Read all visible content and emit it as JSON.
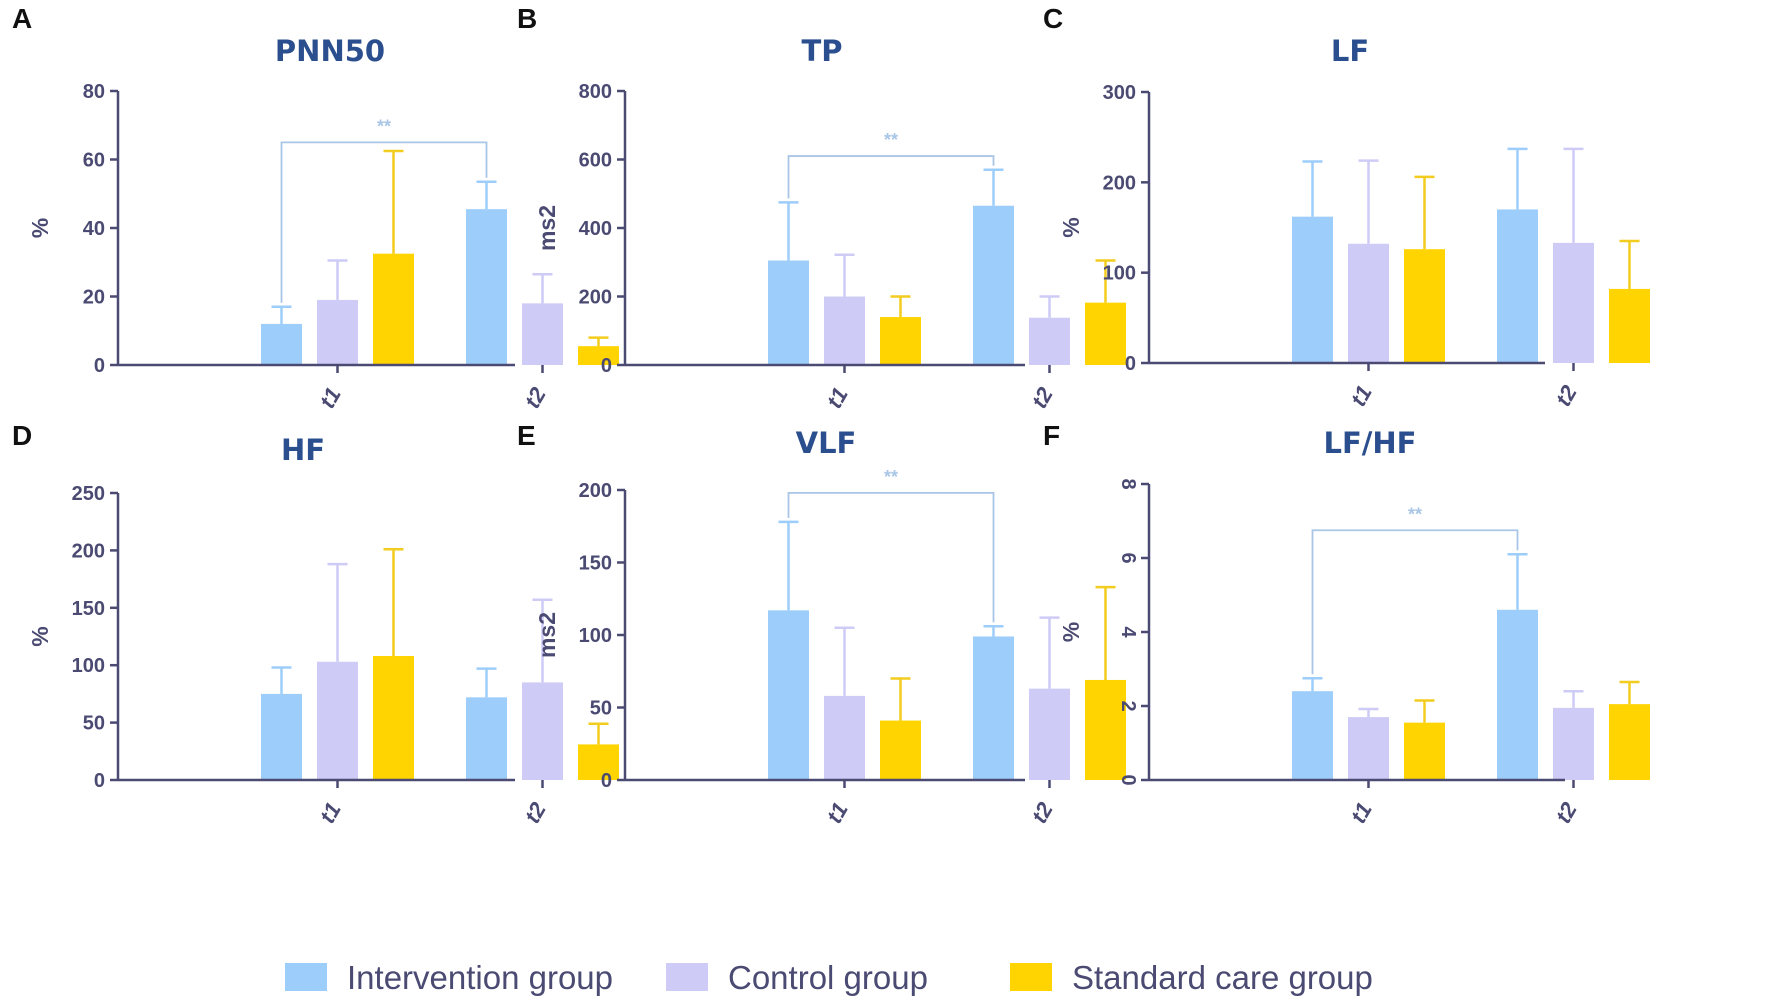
{
  "chart_data": [
    {
      "panel": "A",
      "title": "PNN50",
      "type": "bar",
      "ylabel": "%",
      "ylim": [
        0,
        80
      ],
      "yticks": [
        0,
        20,
        40,
        60,
        80
      ],
      "categories": [
        "t1",
        "t2"
      ],
      "series": [
        {
          "name": "Intervention group",
          "values": [
            12,
            45.5
          ],
          "errors": [
            5,
            8
          ]
        },
        {
          "name": "Control group",
          "values": [
            19,
            18
          ],
          "errors": [
            11.5,
            8.5
          ]
        },
        {
          "name": "Standard care group",
          "values": [
            32.5,
            5.5
          ],
          "errors": [
            30,
            2.5
          ]
        }
      ],
      "significance": {
        "label": "**",
        "top": 65
      }
    },
    {
      "panel": "B",
      "title": "TP",
      "type": "bar",
      "ylabel": "ms2",
      "ylim": [
        0,
        800
      ],
      "yticks": [
        0,
        200,
        400,
        600,
        800
      ],
      "categories": [
        "t1",
        "t2"
      ],
      "series": [
        {
          "name": "Intervention group",
          "values": [
            305,
            465
          ],
          "errors": [
            170,
            105
          ]
        },
        {
          "name": "Control group",
          "values": [
            200,
            138
          ],
          "errors": [
            122,
            62
          ]
        },
        {
          "name": "Standard care group",
          "values": [
            140,
            182
          ],
          "errors": [
            60,
            123
          ]
        }
      ],
      "significance": {
        "label": "**",
        "top": 610
      }
    },
    {
      "panel": "C",
      "title": "LF",
      "type": "bar",
      "ylabel": "%",
      "ylim": [
        0,
        300
      ],
      "yticks": [
        0,
        100,
        200,
        300
      ],
      "categories": [
        "t1",
        "t2"
      ],
      "series": [
        {
          "name": "Intervention group",
          "values": [
            162,
            170
          ],
          "errors": [
            61,
            67
          ]
        },
        {
          "name": "Control group",
          "values": [
            132,
            133
          ],
          "errors": [
            92,
            104
          ]
        },
        {
          "name": "Standard care group",
          "values": [
            126,
            82
          ],
          "errors": [
            80,
            53
          ]
        }
      ]
    },
    {
      "panel": "D",
      "title": "HF",
      "type": "bar",
      "ylabel": "%",
      "ylim": [
        0,
        250
      ],
      "yticks": [
        0,
        50,
        100,
        150,
        200,
        250
      ],
      "categories": [
        "t1",
        "t2"
      ],
      "series": [
        {
          "name": "Intervention group",
          "values": [
            75,
            72
          ],
          "errors": [
            23,
            25
          ]
        },
        {
          "name": "Control group",
          "values": [
            103,
            85
          ],
          "errors": [
            85,
            72
          ]
        },
        {
          "name": "Standard care group",
          "values": [
            108,
            31
          ],
          "errors": [
            93,
            18
          ]
        }
      ]
    },
    {
      "panel": "E",
      "title": "VLF",
      "type": "bar",
      "ylabel": "ms2",
      "ylim": [
        0,
        200
      ],
      "yticks": [
        0,
        50,
        100,
        150,
        200
      ],
      "categories": [
        "t1",
        "t2"
      ],
      "series": [
        {
          "name": "Intervention group",
          "values": [
            117,
            99
          ],
          "errors": [
            61,
            7
          ]
        },
        {
          "name": "Control group",
          "values": [
            58,
            63
          ],
          "errors": [
            47,
            49
          ]
        },
        {
          "name": "Standard care group",
          "values": [
            41,
            69
          ],
          "errors": [
            29,
            64
          ]
        }
      ],
      "significance": {
        "label": "**",
        "top": 198
      }
    },
    {
      "panel": "F",
      "title": "LF/HF",
      "type": "bar",
      "ylabel": "%",
      "ylim": [
        0,
        8
      ],
      "yticks": [
        0,
        2,
        4,
        6,
        8
      ],
      "ytick_rotation": 90,
      "categories": [
        "t1",
        "t2"
      ],
      "series": [
        {
          "name": "Intervention group",
          "values": [
            2.4,
            4.6
          ],
          "errors": [
            0.35,
            1.5
          ]
        },
        {
          "name": "Control group",
          "values": [
            1.7,
            1.95
          ],
          "errors": [
            0.22,
            0.45
          ]
        },
        {
          "name": "Standard care group",
          "values": [
            1.55,
            2.05
          ],
          "errors": [
            0.6,
            0.6
          ]
        }
      ],
      "significance": {
        "label": "**",
        "top": 6.75
      }
    }
  ],
  "legend": {
    "items": [
      {
        "label": "Intervention group",
        "color": "#9dcdfa"
      },
      {
        "label": "Control group",
        "color": "#cecbf6"
      },
      {
        "label": "Standard care group",
        "color": "#ffd400"
      }
    ]
  },
  "colors": {
    "axis": "#4a4a72",
    "bracket": "#a9c6e6",
    "error_bars": [
      "#9dcdfa",
      "#cecbf6",
      "#f2cc1f"
    ]
  }
}
